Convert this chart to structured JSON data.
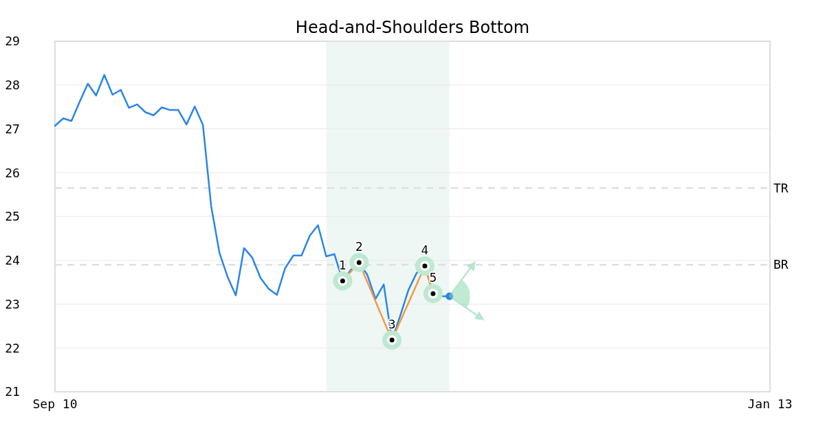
{
  "chart_data": {
    "type": "line",
    "title": "Head-and-Shoulders Bottom",
    "categories": [
      "Sep 10",
      null,
      null,
      null,
      null,
      null,
      null,
      null,
      null,
      null,
      null,
      null,
      null,
      null,
      null,
      null,
      null,
      null,
      null,
      null,
      null,
      null,
      null,
      null,
      null,
      null,
      null,
      null,
      null,
      null,
      null,
      null,
      null,
      null,
      null,
      null,
      null,
      null,
      null,
      null,
      null,
      null,
      null,
      null,
      null,
      null,
      null,
      null,
      null,
      null,
      null,
      null,
      null,
      null,
      null,
      null,
      null,
      null,
      null,
      null,
      null,
      null,
      null,
      null,
      null,
      null,
      null,
      null,
      null,
      null,
      null,
      null,
      null,
      null,
      null,
      null,
      null,
      null,
      null,
      null,
      null,
      null,
      null,
      null,
      null,
      null,
      null,
      "Jan 13"
    ],
    "ylim": [
      21,
      29
    ],
    "yticks": [
      21,
      22,
      23,
      24,
      25,
      26,
      27,
      28,
      29
    ],
    "grid": "y",
    "series": [
      {
        "color": "#2a85e8",
        "marker": "none",
        "values": [
          27.07,
          27.24,
          27.18,
          27.62,
          28.03,
          27.76,
          28.23,
          27.78,
          27.89,
          27.48,
          27.56,
          27.38,
          27.31,
          27.49,
          27.43,
          27.43,
          27.1,
          27.51,
          27.09,
          25.24,
          24.18,
          23.62,
          23.2,
          24.28,
          24.06,
          23.6,
          23.35,
          23.21,
          23.82,
          24.11,
          24.11,
          24.56,
          24.8,
          24.09,
          24.14,
          23.53,
          23.78,
          23.95,
          23.67,
          23.12,
          23.45,
          22.18,
          22.73,
          23.32,
          23.71,
          23.87,
          23.24,
          23.18,
          23.18,
          null,
          null,
          null,
          null,
          null,
          null,
          null,
          null,
          null,
          null,
          null,
          null,
          null,
          null,
          null,
          null,
          null,
          null,
          null,
          null,
          null,
          null,
          null,
          null,
          null,
          null,
          null,
          null,
          null,
          null,
          null,
          null,
          null,
          null,
          null,
          null,
          null,
          null,
          null
        ]
      },
      {
        "color": "#f59a45",
        "marker": "circle",
        "values": [
          null,
          null,
          null,
          null,
          null,
          null,
          null,
          null,
          null,
          null,
          null,
          null,
          null,
          null,
          null,
          null,
          null,
          null,
          null,
          null,
          null,
          null,
          null,
          null,
          null,
          null,
          null,
          null,
          null,
          null,
          null,
          null,
          null,
          null,
          null,
          23.53,
          null,
          23.95,
          null,
          null,
          null,
          22.18,
          null,
          null,
          null,
          23.87,
          23.24,
          null,
          null,
          null,
          null,
          null,
          null,
          null,
          null,
          null,
          null,
          null,
          null,
          null,
          null,
          null,
          null,
          null,
          null,
          null,
          null,
          null,
          null,
          null,
          null,
          null,
          null,
          null,
          null,
          null,
          null,
          null,
          null,
          null,
          null,
          null,
          null,
          null,
          null,
          null,
          null,
          null
        ],
        "line_style": "solid"
      },
      {
        "type": "scatter",
        "color": "#2a85e8",
        "marker": "circle",
        "values": [
          null,
          null,
          null,
          null,
          null,
          null,
          null,
          null,
          null,
          null,
          null,
          null,
          null,
          null,
          null,
          null,
          null,
          null,
          null,
          null,
          null,
          null,
          null,
          null,
          null,
          null,
          null,
          null,
          null,
          null,
          null,
          null,
          null,
          null,
          null,
          null,
          null,
          null,
          null,
          null,
          null,
          null,
          null,
          null,
          null,
          null,
          null,
          null,
          23.18,
          null,
          null,
          null,
          null,
          null,
          null,
          null,
          null,
          null,
          null,
          null,
          null,
          null,
          null,
          null,
          null,
          null,
          null,
          null,
          null,
          null,
          null,
          null,
          null,
          null,
          null,
          null,
          null,
          null,
          null,
          null,
          null,
          null,
          null,
          null,
          null,
          null,
          null,
          null
        ]
      }
    ],
    "annotations": [
      "1",
      "2",
      "3",
      "4",
      "5"
    ],
    "ref_lines": [
      {
        "axis": "y",
        "value": 25.65,
        "label": "TR",
        "color": "#e0e0e0",
        "line_style": "dashed"
      },
      {
        "axis": "y",
        "value": 23.9,
        "label": "BR",
        "color": "#e0e0e0",
        "line_style": "dashed"
      }
    ]
  }
}
